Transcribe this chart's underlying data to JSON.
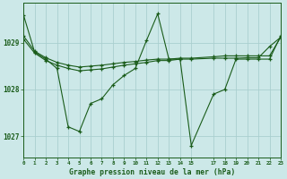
{
  "background_color": "#cce8e8",
  "grid_color": "#aacfcf",
  "line_color": "#1a5c1a",
  "title": "Graphe pression niveau de la mer (hPa)",
  "xlim": [
    0,
    23
  ],
  "ylim": [
    1026.55,
    1029.85
  ],
  "yticks": [
    1027,
    1028,
    1029
  ],
  "xticks": [
    0,
    1,
    2,
    3,
    4,
    5,
    6,
    7,
    8,
    9,
    10,
    11,
    12,
    13,
    14,
    15,
    17,
    18,
    19,
    20,
    21,
    22,
    23
  ],
  "series": [
    {
      "x": [
        0,
        1,
        2,
        3,
        4,
        5,
        6,
        7,
        8,
        9,
        10,
        11,
        12,
        13,
        14,
        15,
        17,
        18,
        19,
        20,
        21,
        22,
        23
      ],
      "y": [
        1029.6,
        1028.8,
        1028.65,
        1028.45,
        1027.2,
        1027.1,
        1027.7,
        1027.8,
        1028.1,
        1028.3,
        1028.45,
        1029.05,
        1029.62,
        1028.65,
        1028.65,
        1026.8,
        1027.9,
        1028.0,
        1028.65,
        1028.65,
        1028.65,
        1028.65,
        1029.15
      ]
    },
    {
      "x": [
        0,
        1,
        2,
        3,
        4,
        5,
        6,
        7,
        8,
        9,
        10,
        11,
        12,
        13,
        14,
        15,
        17,
        18,
        19,
        20,
        21,
        22,
        23
      ],
      "y": [
        1029.15,
        1028.82,
        1028.68,
        1028.58,
        1028.52,
        1028.48,
        1028.5,
        1028.52,
        1028.55,
        1028.58,
        1028.6,
        1028.63,
        1028.65,
        1028.65,
        1028.67,
        1028.67,
        1028.7,
        1028.72,
        1028.72,
        1028.72,
        1028.72,
        1028.72,
        1029.12
      ]
    },
    {
      "x": [
        0,
        1,
        2,
        3,
        4,
        5,
        6,
        7,
        8,
        9,
        10,
        11,
        12,
        13,
        14,
        15,
        17,
        18,
        19,
        20,
        21,
        22,
        23
      ],
      "y": [
        1029.08,
        1028.78,
        1028.62,
        1028.52,
        1028.45,
        1028.4,
        1028.42,
        1028.44,
        1028.48,
        1028.52,
        1028.55,
        1028.58,
        1028.62,
        1028.62,
        1028.65,
        1028.65,
        1028.67,
        1028.67,
        1028.67,
        1028.68,
        1028.68,
        1028.92,
        1029.12
      ]
    }
  ]
}
